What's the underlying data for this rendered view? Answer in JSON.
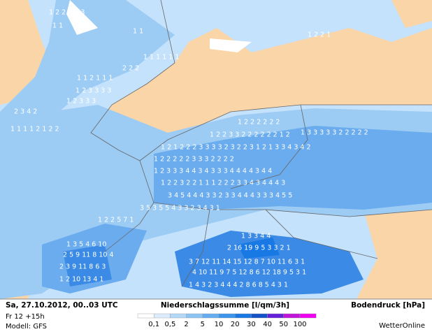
{
  "footer": {
    "date": "Sa, 27.10.2012, 00..03 UTC",
    "run": "Fr 12 +15h",
    "model": "Modell: GFS",
    "title": "Niederschlagssumme [l/qm/3h]",
    "pressure": "Bodendruck [hPa]",
    "brand": "WetterOnline"
  },
  "legend": {
    "colors": [
      "#ffffff",
      "#dcecfc",
      "#b4d8f8",
      "#8cc4f4",
      "#64acf0",
      "#3c94ec",
      "#1878e4",
      "#1450c8",
      "#6420d8",
      "#c014d8",
      "#f000f0"
    ],
    "labels": [
      "0,1",
      "0,5",
      "2",
      "5",
      "10",
      "20",
      "30",
      "40",
      "50",
      "100"
    ]
  },
  "map": {
    "labels": [
      "1 2 2 1 2 3",
      "1 1",
      "1 1",
      "1 2 2 1",
      "1 1 1 1 1 1",
      "2 2 2",
      "1 1 2 1 1 1",
      "1 2 3 3 3 3",
      "1 2 3 3 3",
      "2 3 4 2",
      "1 1 1 1 2 1 2 2",
      "1 2 2 2 2 2 2",
      "1 2 2 3 3 2 2 2 2 2 2 1 2",
      "1 3 3 3 3 3 2 2 2 2 2",
      "1 2 1 2 2 2 3 3 3 3 2 3 2 2 3 1 2 1 3 3 4 3 4 2",
      "1 2 2 2 2 2 3 3 3 2 2 2 2",
      "1 2 3 3 3 4 4 3 4 3 3 3 4 4 4 4 3 4 4",
      "1 2 2 3 2 2 1 1 1 2 2 2 3 3 4 3 4 4 4 3",
      "3 4 5 4 4 4 3 3 2 3 3 4 4 4 3 3 3 4 5 5",
      "3 5 3 5 5 4 3 3 2 3 4 3 1",
      "1 2 2 5 7 1",
      "1 3 3 4 4",
      "1 3 5 4 6 10",
      "2 16 19 9 5 3 3 2 1",
      "2 5 9 11 8 10 4",
      "3 7 12 11 14 15 12 8 7 10 11 6 3 1",
      "2 3 9 11 8 6 3",
      "4 10 11 9 7 5 12 8 6 12 18 9 5 3 1",
      "1 2 10 13 4 1",
      "1 4 3 2 3 4 4 4 2 8 6 8 5 4 3 1"
    ]
  }
}
